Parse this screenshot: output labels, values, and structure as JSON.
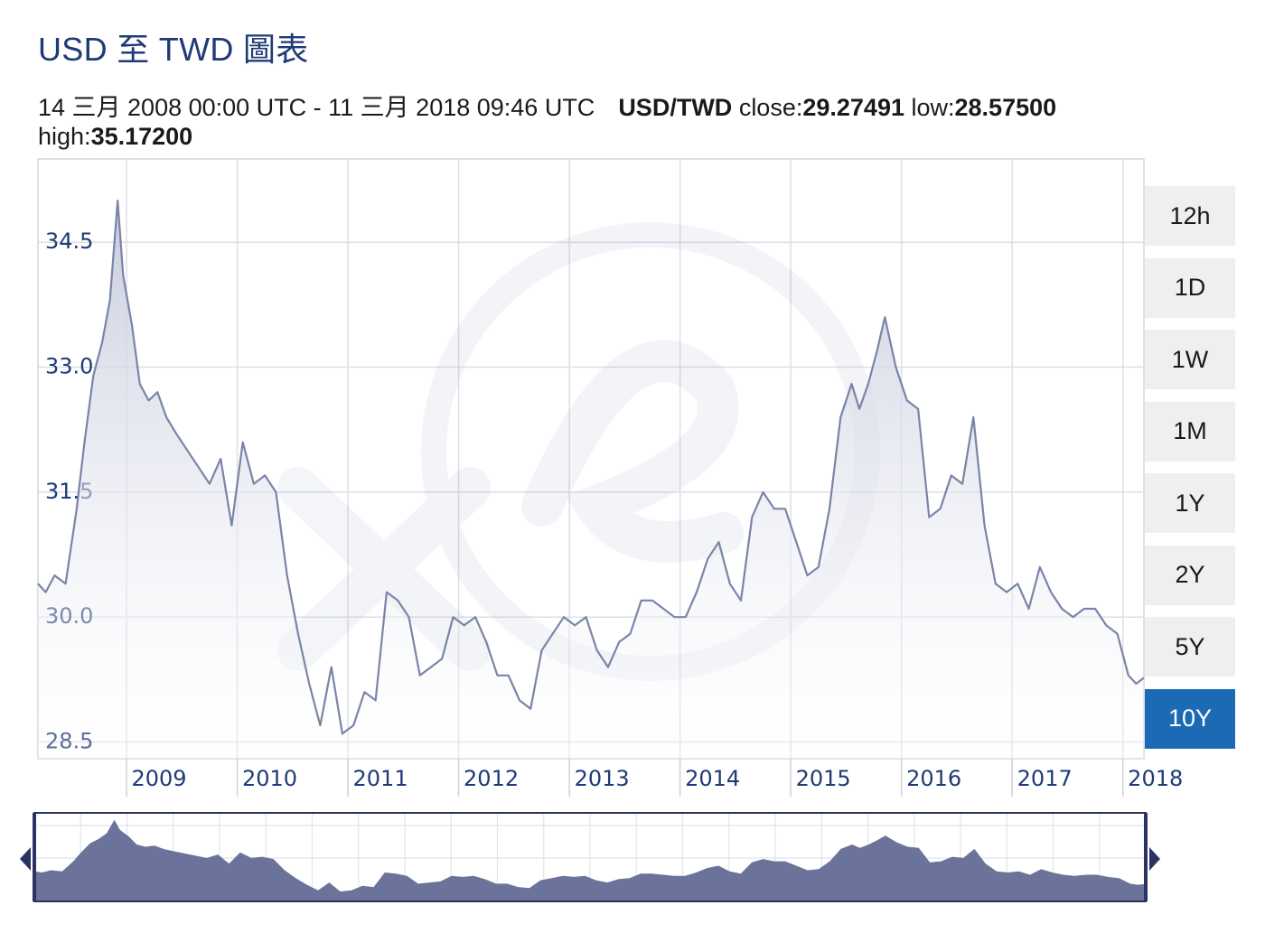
{
  "header": {
    "title": "USD 至 TWD 圖表",
    "period": "14 三月 2008 00:00 UTC - 11 三月 2018 09:46 UTC",
    "pair": "USD/TWD",
    "close_label": "close:",
    "close_value": "29.27491",
    "low_label": "low:",
    "low_value": "28.57500",
    "high_label": "high:",
    "high_value": "35.17200"
  },
  "range_buttons": [
    {
      "label": "12h",
      "active": false
    },
    {
      "label": "1D",
      "active": false
    },
    {
      "label": "1W",
      "active": false
    },
    {
      "label": "1M",
      "active": false
    },
    {
      "label": "1Y",
      "active": false
    },
    {
      "label": "2Y",
      "active": false
    },
    {
      "label": "5Y",
      "active": false
    },
    {
      "label": "10Y",
      "active": true
    }
  ],
  "colors": {
    "title": "#1e3a78",
    "line": "#7a84a8",
    "area_top": "#c4c8dc",
    "grid": "#dedfe6",
    "navigator_fill": "#6b739a",
    "active_button": "#1c6ab3"
  },
  "chart_data": {
    "type": "area",
    "title": "USD 至 TWD 圖表",
    "xlabel": "",
    "ylabel": "",
    "ylim": [
      28.3,
      35.5
    ],
    "xlim": [
      2008.2,
      2018.19
    ],
    "grid": true,
    "yticks": [
      {
        "value": 28.5,
        "label": "28.5"
      },
      {
        "value": 30.0,
        "label": "30.0"
      },
      {
        "value": 31.5,
        "label": "31.5"
      },
      {
        "value": 33.0,
        "label": "33.0"
      },
      {
        "value": 34.5,
        "label": "34.5"
      }
    ],
    "xticks": [
      {
        "value": 2009,
        "label": "2009"
      },
      {
        "value": 2010,
        "label": "2010"
      },
      {
        "value": 2011,
        "label": "2011"
      },
      {
        "value": 2012,
        "label": "2012"
      },
      {
        "value": 2013,
        "label": "2013"
      },
      {
        "value": 2014,
        "label": "2014"
      },
      {
        "value": 2015,
        "label": "2015"
      },
      {
        "value": 2016,
        "label": "2016"
      },
      {
        "value": 2017,
        "label": "2017"
      },
      {
        "value": 2018,
        "label": "2018"
      }
    ],
    "series": [
      {
        "name": "USD/TWD",
        "x": [
          2008.2,
          2008.27,
          2008.35,
          2008.45,
          2008.55,
          2008.62,
          2008.7,
          2008.78,
          2008.85,
          2008.92,
          2008.97,
          2009.05,
          2009.12,
          2009.2,
          2009.28,
          2009.36,
          2009.45,
          2009.55,
          2009.65,
          2009.75,
          2009.85,
          2009.95,
          2010.05,
          2010.15,
          2010.25,
          2010.35,
          2010.45,
          2010.55,
          2010.65,
          2010.75,
          2010.85,
          2010.95,
          2011.05,
          2011.15,
          2011.25,
          2011.35,
          2011.45,
          2011.55,
          2011.65,
          2011.75,
          2011.85,
          2011.95,
          2012.05,
          2012.15,
          2012.25,
          2012.35,
          2012.45,
          2012.55,
          2012.65,
          2012.75,
          2012.85,
          2012.95,
          2013.05,
          2013.15,
          2013.25,
          2013.35,
          2013.45,
          2013.55,
          2013.65,
          2013.75,
          2013.85,
          2013.95,
          2014.05,
          2014.15,
          2014.25,
          2014.35,
          2014.45,
          2014.55,
          2014.65,
          2014.75,
          2014.85,
          2014.95,
          2015.05,
          2015.15,
          2015.25,
          2015.35,
          2015.45,
          2015.55,
          2015.62,
          2015.7,
          2015.78,
          2015.85,
          2015.95,
          2016.05,
          2016.15,
          2016.25,
          2016.35,
          2016.45,
          2016.55,
          2016.65,
          2016.75,
          2016.85,
          2016.95,
          2017.05,
          2017.15,
          2017.25,
          2017.35,
          2017.45,
          2017.55,
          2017.65,
          2017.75,
          2017.85,
          2017.95,
          2018.05,
          2018.12,
          2018.19
        ],
        "y": [
          30.4,
          30.3,
          30.5,
          30.4,
          31.3,
          32.1,
          32.9,
          33.3,
          33.8,
          35.0,
          34.1,
          33.5,
          32.8,
          32.6,
          32.7,
          32.4,
          32.2,
          32.0,
          31.8,
          31.6,
          31.9,
          31.1,
          32.1,
          31.6,
          31.7,
          31.5,
          30.5,
          29.8,
          29.2,
          28.7,
          29.4,
          28.6,
          28.7,
          29.1,
          29.0,
          30.3,
          30.2,
          30.0,
          29.3,
          29.4,
          29.5,
          30.0,
          29.9,
          30.0,
          29.7,
          29.3,
          29.3,
          29.0,
          28.9,
          29.6,
          29.8,
          30.0,
          29.9,
          30.0,
          29.6,
          29.4,
          29.7,
          29.8,
          30.2,
          30.2,
          30.1,
          30.0,
          30.0,
          30.3,
          30.7,
          30.9,
          30.4,
          30.2,
          31.2,
          31.5,
          31.3,
          31.3,
          30.9,
          30.5,
          30.6,
          31.3,
          32.4,
          32.8,
          32.5,
          32.8,
          33.2,
          33.6,
          33.0,
          32.6,
          32.5,
          31.2,
          31.3,
          31.7,
          31.6,
          32.4,
          31.1,
          30.4,
          30.3,
          30.4,
          30.1,
          30.6,
          30.3,
          30.1,
          30.0,
          30.1,
          30.1,
          29.9,
          29.8,
          29.3,
          29.2,
          29.27
        ]
      }
    ]
  }
}
